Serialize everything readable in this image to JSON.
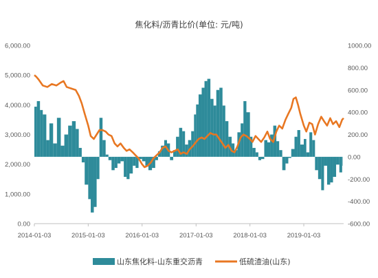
{
  "chart_data": {
    "type": "bar+line",
    "title": "焦化料/沥青比价(单位: 元/吨)",
    "x_ticks": [
      "2014-01-03",
      "2015-01-03",
      "2016-01-03",
      "2017-01-03",
      "2018-01-03",
      "2019-01-03"
    ],
    "x_range": [
      "2014-01-03",
      "2019-09-30"
    ],
    "y_left_ticks": [
      "6,000.00",
      "5,000.00",
      "4,000.00",
      "3,000.00",
      "2,000.00",
      "1,000.00",
      "0.00"
    ],
    "y_left_range": [
      0,
      6000
    ],
    "y_right_ticks": [
      "1000.00",
      "800.00",
      "600.00",
      "400.00",
      "200.00",
      "0.00",
      "-200.00",
      "-400.00",
      "-600.00"
    ],
    "y_right_range": [
      -600,
      1000
    ],
    "grid": false,
    "legend_position": "bottom",
    "colors": {
      "bar": "#2E8B9A",
      "line": "#E87722"
    },
    "series": [
      {
        "name": "山东焦化料-山东重交沥青",
        "type": "bar",
        "axis": "right",
        "color": "#2E8B9A",
        "points": [
          [
            "2014-01-03",
            450
          ],
          [
            "2014-01-20",
            500
          ],
          [
            "2014-02-10",
            420
          ],
          [
            "2014-03-01",
            380
          ],
          [
            "2014-03-25",
            150
          ],
          [
            "2014-04-15",
            300
          ],
          [
            "2014-05-10",
            120
          ],
          [
            "2014-06-05",
            350
          ],
          [
            "2014-07-01",
            100
          ],
          [
            "2014-07-25",
            200
          ],
          [
            "2014-08-20",
            280
          ],
          [
            "2014-09-15",
            320
          ],
          [
            "2014-10-10",
            250
          ],
          [
            "2014-10-31",
            80
          ],
          [
            "2014-11-20",
            -50
          ],
          [
            "2014-12-10",
            -250
          ],
          [
            "2015-01-03",
            -380
          ],
          [
            "2015-01-20",
            -500
          ],
          [
            "2015-02-10",
            -450
          ],
          [
            "2015-03-01",
            -200
          ],
          [
            "2015-03-20",
            350
          ],
          [
            "2015-04-10",
            150
          ],
          [
            "2015-05-01",
            20
          ],
          [
            "2015-05-20",
            -30
          ],
          [
            "2015-06-10",
            -120
          ],
          [
            "2015-07-01",
            -100
          ],
          [
            "2015-07-20",
            -60
          ],
          [
            "2015-08-10",
            -40
          ],
          [
            "2015-09-01",
            -180
          ],
          [
            "2015-09-20",
            -200
          ],
          [
            "2015-10-10",
            -150
          ],
          [
            "2015-11-01",
            -80
          ],
          [
            "2015-11-20",
            -100
          ],
          [
            "2015-12-10",
            -20
          ],
          [
            "2016-01-03",
            -40
          ],
          [
            "2016-01-25",
            -80
          ],
          [
            "2016-02-15",
            -120
          ],
          [
            "2016-03-10",
            -100
          ],
          [
            "2016-04-01",
            -30
          ],
          [
            "2016-04-20",
            50
          ],
          [
            "2016-05-10",
            100
          ],
          [
            "2016-06-01",
            150
          ],
          [
            "2016-06-20",
            120
          ],
          [
            "2016-07-10",
            -30
          ],
          [
            "2016-08-01",
            60
          ],
          [
            "2016-08-20",
            180
          ],
          [
            "2016-09-10",
            260
          ],
          [
            "2016-10-01",
            230
          ],
          [
            "2016-10-20",
            110
          ],
          [
            "2016-11-10",
            150
          ],
          [
            "2016-12-01",
            230
          ],
          [
            "2016-12-20",
            380
          ],
          [
            "2017-01-03",
            470
          ],
          [
            "2017-01-20",
            560
          ],
          [
            "2017-02-10",
            620
          ],
          [
            "2017-03-01",
            680
          ],
          [
            "2017-03-20",
            700
          ],
          [
            "2017-04-10",
            520
          ],
          [
            "2017-05-01",
            460
          ],
          [
            "2017-05-20",
            600
          ],
          [
            "2017-06-10",
            620
          ],
          [
            "2017-07-01",
            460
          ],
          [
            "2017-07-20",
            320
          ],
          [
            "2017-08-10",
            180
          ],
          [
            "2017-09-01",
            120
          ],
          [
            "2017-09-20",
            60
          ],
          [
            "2017-10-10",
            220
          ],
          [
            "2017-11-01",
            300
          ],
          [
            "2017-11-20",
            500
          ],
          [
            "2017-12-10",
            400
          ],
          [
            "2018-01-03",
            180
          ],
          [
            "2018-01-20",
            80
          ],
          [
            "2018-02-10",
            40
          ],
          [
            "2018-03-01",
            -30
          ],
          [
            "2018-03-20",
            -20
          ],
          [
            "2018-04-10",
            150
          ],
          [
            "2018-05-01",
            130
          ],
          [
            "2018-05-20",
            200
          ],
          [
            "2018-06-10",
            280
          ],
          [
            "2018-07-01",
            140
          ],
          [
            "2018-07-20",
            60
          ],
          [
            "2018-08-10",
            -120
          ],
          [
            "2018-09-01",
            -60
          ],
          [
            "2018-09-20",
            -10
          ],
          [
            "2018-10-10",
            70
          ],
          [
            "2018-11-01",
            180
          ],
          [
            "2018-11-20",
            240
          ],
          [
            "2018-12-10",
            110
          ],
          [
            "2019-01-03",
            160
          ],
          [
            "2019-01-20",
            40
          ],
          [
            "2019-02-10",
            220
          ],
          [
            "2019-03-01",
            150
          ],
          [
            "2019-03-20",
            -120
          ],
          [
            "2019-04-10",
            -200
          ],
          [
            "2019-05-01",
            -300
          ],
          [
            "2019-05-20",
            -80
          ],
          [
            "2019-06-10",
            -250
          ],
          [
            "2019-07-01",
            -230
          ],
          [
            "2019-07-20",
            -180
          ],
          [
            "2019-08-10",
            -70
          ],
          [
            "2019-09-01",
            -140
          ],
          [
            "2019-09-20",
            -80
          ]
        ]
      },
      {
        "name": "低硫渣油(山东)",
        "type": "line",
        "axis": "left",
        "color": "#E87722",
        "points": [
          [
            "2014-01-03",
            5000
          ],
          [
            "2014-01-15",
            4950
          ],
          [
            "2014-02-01",
            4850
          ],
          [
            "2014-03-01",
            4650
          ],
          [
            "2014-04-01",
            4600
          ],
          [
            "2014-05-01",
            4700
          ],
          [
            "2014-06-01",
            4650
          ],
          [
            "2014-07-01",
            4750
          ],
          [
            "2014-07-20",
            4800
          ],
          [
            "2014-08-10",
            4600
          ],
          [
            "2014-09-10",
            4550
          ],
          [
            "2014-10-10",
            4500
          ],
          [
            "2014-11-01",
            4300
          ],
          [
            "2014-11-20",
            4050
          ],
          [
            "2014-12-10",
            3700
          ],
          [
            "2015-01-03",
            3300
          ],
          [
            "2015-01-20",
            2950
          ],
          [
            "2015-02-10",
            2850
          ],
          [
            "2015-03-01",
            3000
          ],
          [
            "2015-03-20",
            3150
          ],
          [
            "2015-04-10",
            3150
          ],
          [
            "2015-05-01",
            3100
          ],
          [
            "2015-05-20",
            3000
          ],
          [
            "2015-06-10",
            2950
          ],
          [
            "2015-07-01",
            2700
          ],
          [
            "2015-07-20",
            2600
          ],
          [
            "2015-08-10",
            2700
          ],
          [
            "2015-09-01",
            2550
          ],
          [
            "2015-09-20",
            2450
          ],
          [
            "2015-10-10",
            2500
          ],
          [
            "2015-11-01",
            2400
          ],
          [
            "2015-11-20",
            2300
          ],
          [
            "2015-12-10",
            2200
          ],
          [
            "2016-01-03",
            2000
          ],
          [
            "2016-01-20",
            1900
          ],
          [
            "2016-02-10",
            1950
          ],
          [
            "2016-03-01",
            2050
          ],
          [
            "2016-03-20",
            2200
          ],
          [
            "2016-04-10",
            2300
          ],
          [
            "2016-05-01",
            2400
          ],
          [
            "2016-05-20",
            2550
          ],
          [
            "2016-06-10",
            2600
          ],
          [
            "2016-07-01",
            2450
          ],
          [
            "2016-07-20",
            2400
          ],
          [
            "2016-08-10",
            2450
          ],
          [
            "2016-09-01",
            2500
          ],
          [
            "2016-09-20",
            2350
          ],
          [
            "2016-10-10",
            2400
          ],
          [
            "2016-11-01",
            2350
          ],
          [
            "2016-11-20",
            2500
          ],
          [
            "2016-12-10",
            2600
          ],
          [
            "2017-01-03",
            2750
          ],
          [
            "2017-01-20",
            2850
          ],
          [
            "2017-02-10",
            2900
          ],
          [
            "2017-03-01",
            2850
          ],
          [
            "2017-03-20",
            2950
          ],
          [
            "2017-04-10",
            3050
          ],
          [
            "2017-05-01",
            3000
          ],
          [
            "2017-05-20",
            3000
          ],
          [
            "2017-06-10",
            2850
          ],
          [
            "2017-07-01",
            2700
          ],
          [
            "2017-07-20",
            2550
          ],
          [
            "2017-08-10",
            2650
          ],
          [
            "2017-09-01",
            2450
          ],
          [
            "2017-09-20",
            2400
          ],
          [
            "2017-10-10",
            2600
          ],
          [
            "2017-11-01",
            2900
          ],
          [
            "2017-11-20",
            3000
          ],
          [
            "2017-12-10",
            2950
          ],
          [
            "2018-01-03",
            2850
          ],
          [
            "2018-01-20",
            2750
          ],
          [
            "2018-02-10",
            2950
          ],
          [
            "2018-03-01",
            2850
          ],
          [
            "2018-03-20",
            2750
          ],
          [
            "2018-04-10",
            2900
          ],
          [
            "2018-05-01",
            3100
          ],
          [
            "2018-05-20",
            2850
          ],
          [
            "2018-06-10",
            2750
          ],
          [
            "2018-07-01",
            3100
          ],
          [
            "2018-07-20",
            3300
          ],
          [
            "2018-08-10",
            3200
          ],
          [
            "2018-09-01",
            3500
          ],
          [
            "2018-09-20",
            3700
          ],
          [
            "2018-10-10",
            3900
          ],
          [
            "2018-10-25",
            4200
          ],
          [
            "2018-11-10",
            4250
          ],
          [
            "2018-11-25",
            4000
          ],
          [
            "2018-12-10",
            3700
          ],
          [
            "2019-01-03",
            3300
          ],
          [
            "2019-01-20",
            3100
          ],
          [
            "2019-02-10",
            3400
          ],
          [
            "2019-03-01",
            3350
          ],
          [
            "2019-03-20",
            3000
          ],
          [
            "2019-04-10",
            3350
          ],
          [
            "2019-05-01",
            3600
          ],
          [
            "2019-05-20",
            3450
          ],
          [
            "2019-06-10",
            3300
          ],
          [
            "2019-07-01",
            3550
          ],
          [
            "2019-07-20",
            3350
          ],
          [
            "2019-08-10",
            3450
          ],
          [
            "2019-09-01",
            3250
          ],
          [
            "2019-09-20",
            3500
          ],
          [
            "2019-09-30",
            3550
          ]
        ]
      }
    ]
  }
}
